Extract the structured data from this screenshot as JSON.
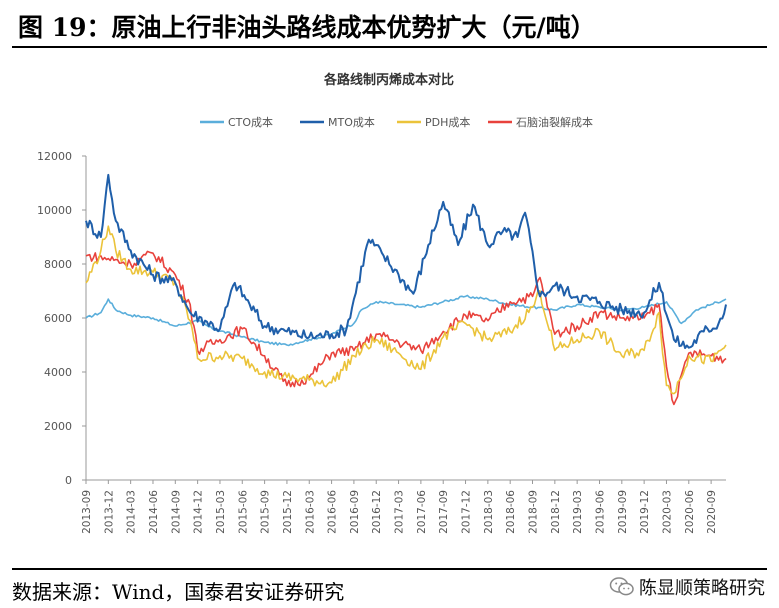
{
  "header": {
    "title": "图 19：原油上行非油头路线成本优势扩大（元/吨）"
  },
  "footer": {
    "source": "数据来源：Wind，国泰君安证券研究",
    "brand": "陈显顺策略研究",
    "brand_icon": "wechat-icon"
  },
  "chart_data": {
    "type": "line",
    "title": "各路线制丙烯成本对比",
    "xlabel": "",
    "ylabel": "",
    "ylim": [
      0,
      12000
    ],
    "yticks": [
      0,
      2000,
      4000,
      6000,
      8000,
      10000,
      12000
    ],
    "x_range": [
      "2013-09",
      "2020-11"
    ],
    "xticks": [
      "2013-09",
      "2013-12",
      "2014-03",
      "2014-06",
      "2014-09",
      "2014-12",
      "2015-03",
      "2015-06",
      "2015-09",
      "2015-12",
      "2016-03",
      "2016-06",
      "2016-09",
      "2016-12",
      "2017-03",
      "2017-06",
      "2017-09",
      "2017-12",
      "2018-03",
      "2018-06",
      "2018-09",
      "2018-12",
      "2019-03",
      "2019-06",
      "2019-09",
      "2019-12",
      "2020-03",
      "2020-06",
      "2020-09"
    ],
    "grid": false,
    "legend_position": "top",
    "series": [
      {
        "name": "CTO成本",
        "color": "#5AAEDB",
        "points": [
          [
            "2013-09",
            6000
          ],
          [
            "2013-11",
            6200
          ],
          [
            "2013-12",
            6700
          ],
          [
            "2014-01",
            6300
          ],
          [
            "2014-03",
            6100
          ],
          [
            "2014-06",
            6000
          ],
          [
            "2014-09",
            5700
          ],
          [
            "2014-12",
            5900
          ],
          [
            "2015-02",
            5600
          ],
          [
            "2015-06",
            5300
          ],
          [
            "2015-09",
            5100
          ],
          [
            "2015-12",
            5000
          ],
          [
            "2016-03",
            5200
          ],
          [
            "2016-06",
            5400
          ],
          [
            "2016-09",
            5800
          ],
          [
            "2016-10",
            6300
          ],
          [
            "2016-12",
            6600
          ],
          [
            "2017-03",
            6500
          ],
          [
            "2017-06",
            6400
          ],
          [
            "2017-09",
            6600
          ],
          [
            "2017-12",
            6800
          ],
          [
            "2018-03",
            6700
          ],
          [
            "2018-06",
            6500
          ],
          [
            "2018-09",
            6400
          ],
          [
            "2018-12",
            6300
          ],
          [
            "2019-03",
            6500
          ],
          [
            "2019-06",
            6400
          ],
          [
            "2019-09",
            6300
          ],
          [
            "2019-12",
            6400
          ],
          [
            "2020-03",
            6600
          ],
          [
            "2020-05",
            5800
          ],
          [
            "2020-07",
            6300
          ],
          [
            "2020-09",
            6500
          ],
          [
            "2020-11",
            6700
          ]
        ]
      },
      {
        "name": "MTO成本",
        "color": "#1F5FAA",
        "points": [
          [
            "2013-09",
            9600
          ],
          [
            "2013-11",
            9000
          ],
          [
            "2013-12",
            11300
          ],
          [
            "2014-01",
            9600
          ],
          [
            "2014-03",
            8500
          ],
          [
            "2014-06",
            7600
          ],
          [
            "2014-09",
            7300
          ],
          [
            "2014-11",
            6200
          ],
          [
            "2015-01",
            5900
          ],
          [
            "2015-03",
            5600
          ],
          [
            "2015-05",
            7300
          ],
          [
            "2015-07",
            6500
          ],
          [
            "2015-09",
            5700
          ],
          [
            "2015-12",
            5500
          ],
          [
            "2016-03",
            5300
          ],
          [
            "2016-06",
            5400
          ],
          [
            "2016-08",
            5600
          ],
          [
            "2016-11",
            8900
          ],
          [
            "2017-01",
            8300
          ],
          [
            "2017-03",
            7600
          ],
          [
            "2017-05",
            6900
          ],
          [
            "2017-07",
            8700
          ],
          [
            "2017-09",
            10300
          ],
          [
            "2017-11",
            8700
          ],
          [
            "2018-01",
            10200
          ],
          [
            "2018-03",
            8700
          ],
          [
            "2018-05",
            9200
          ],
          [
            "2018-07",
            9000
          ],
          [
            "2018-08",
            9900
          ],
          [
            "2018-10",
            6800
          ],
          [
            "2018-12",
            7200
          ],
          [
            "2019-03",
            6800
          ],
          [
            "2019-06",
            6600
          ],
          [
            "2019-09",
            6300
          ],
          [
            "2019-12",
            6200
          ],
          [
            "2020-02",
            7300
          ],
          [
            "2020-04",
            5200
          ],
          [
            "2020-06",
            4900
          ],
          [
            "2020-08",
            5500
          ],
          [
            "2020-10",
            5800
          ],
          [
            "2020-11",
            6500
          ]
        ]
      },
      {
        "name": "PDH成本",
        "color": "#EBC33A",
        "points": [
          [
            "2013-09",
            7300
          ],
          [
            "2013-11",
            8500
          ],
          [
            "2013-12",
            9400
          ],
          [
            "2014-01",
            8500
          ],
          [
            "2014-03",
            7800
          ],
          [
            "2014-06",
            7700
          ],
          [
            "2014-09",
            7300
          ],
          [
            "2014-11",
            5900
          ],
          [
            "2014-12",
            4500
          ],
          [
            "2015-03",
            4600
          ],
          [
            "2015-06",
            4500
          ],
          [
            "2015-09",
            4000
          ],
          [
            "2015-12",
            3800
          ],
          [
            "2016-03",
            3700
          ],
          [
            "2016-06",
            3600
          ],
          [
            "2016-09",
            4600
          ],
          [
            "2016-12",
            5200
          ],
          [
            "2017-03",
            4700
          ],
          [
            "2017-06",
            4100
          ],
          [
            "2017-09",
            5300
          ],
          [
            "2017-12",
            5800
          ],
          [
            "2018-03",
            5200
          ],
          [
            "2018-06",
            5500
          ],
          [
            "2018-09",
            6400
          ],
          [
            "2018-10",
            7000
          ],
          [
            "2018-12",
            4800
          ],
          [
            "2019-03",
            5200
          ],
          [
            "2019-06",
            5500
          ],
          [
            "2019-09",
            4600
          ],
          [
            "2019-12",
            4800
          ],
          [
            "2020-02",
            6200
          ],
          [
            "2020-03",
            3500
          ],
          [
            "2020-04",
            3200
          ],
          [
            "2020-06",
            4600
          ],
          [
            "2020-09",
            4400
          ],
          [
            "2020-11",
            5000
          ]
        ]
      },
      {
        "name": "石脑油裂解成本",
        "color": "#E8423C",
        "points": [
          [
            "2013-09",
            8300
          ],
          [
            "2013-12",
            8200
          ],
          [
            "2014-03",
            8000
          ],
          [
            "2014-06",
            8400
          ],
          [
            "2014-09",
            7600
          ],
          [
            "2014-11",
            6500
          ],
          [
            "2014-12",
            4800
          ],
          [
            "2015-03",
            5200
          ],
          [
            "2015-06",
            5600
          ],
          [
            "2015-09",
            4600
          ],
          [
            "2015-12",
            3500
          ],
          [
            "2016-03",
            3800
          ],
          [
            "2016-06",
            4700
          ],
          [
            "2016-09",
            4800
          ],
          [
            "2016-12",
            5400
          ],
          [
            "2017-03",
            5100
          ],
          [
            "2017-06",
            4800
          ],
          [
            "2017-09",
            5500
          ],
          [
            "2017-12",
            6100
          ],
          [
            "2018-03",
            5900
          ],
          [
            "2018-06",
            6600
          ],
          [
            "2018-09",
            6800
          ],
          [
            "2018-10",
            7500
          ],
          [
            "2018-12",
            5400
          ],
          [
            "2019-03",
            5700
          ],
          [
            "2019-06",
            6200
          ],
          [
            "2019-09",
            6000
          ],
          [
            "2019-12",
            6000
          ],
          [
            "2020-02",
            6500
          ],
          [
            "2020-03",
            4200
          ],
          [
            "2020-04",
            2800
          ],
          [
            "2020-06",
            4700
          ],
          [
            "2020-09",
            4600
          ],
          [
            "2020-11",
            4500
          ]
        ]
      }
    ]
  }
}
